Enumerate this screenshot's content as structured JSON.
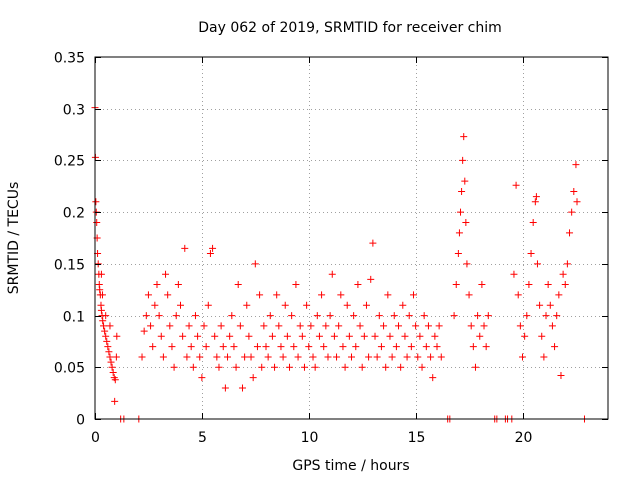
{
  "chart_data": {
    "type": "scatter",
    "title": "Day 062 of 2019, SRMTID for receiver chim",
    "xlabel": "GPS time / hours",
    "ylabel": "SRMTID / TECUs",
    "xlim": [
      0,
      24
    ],
    "ylim": [
      0,
      0.35
    ],
    "x_ticks": [
      0,
      5,
      10,
      15,
      20
    ],
    "x_tick_labels": [
      "0",
      "5",
      "10",
      "15",
      "20"
    ],
    "y_ticks": [
      0,
      0.05,
      0.1,
      0.15,
      0.2,
      0.25,
      0.3,
      0.35
    ],
    "y_tick_labels": [
      "0",
      "0.05",
      "0.1",
      "0.15",
      "0.2",
      "0.25",
      "0.3",
      "0.35"
    ],
    "grid": true,
    "marker": "+",
    "series": [
      {
        "name": "SRMTID",
        "color": "#ff0000",
        "points": [
          [
            0.0,
            0.301
          ],
          [
            0.02,
            0.253
          ],
          [
            0.04,
            0.21
          ],
          [
            0.06,
            0.2
          ],
          [
            0.08,
            0.19
          ],
          [
            0.1,
            0.175
          ],
          [
            0.12,
            0.16
          ],
          [
            0.15,
            0.15
          ],
          [
            0.18,
            0.14
          ],
          [
            0.2,
            0.13
          ],
          [
            0.22,
            0.125
          ],
          [
            0.25,
            0.12
          ],
          [
            0.28,
            0.11
          ],
          [
            0.3,
            0.105
          ],
          [
            0.33,
            0.1
          ],
          [
            0.36,
            0.095
          ],
          [
            0.4,
            0.09
          ],
          [
            0.45,
            0.085
          ],
          [
            0.5,
            0.08
          ],
          [
            0.55,
            0.075
          ],
          [
            0.6,
            0.07
          ],
          [
            0.65,
            0.065
          ],
          [
            0.7,
            0.06
          ],
          [
            0.75,
            0.055
          ],
          [
            0.8,
            0.05
          ],
          [
            0.85,
            0.045
          ],
          [
            0.9,
            0.04
          ],
          [
            0.95,
            0.038
          ],
          [
            1.0,
            0.06
          ],
          [
            1.02,
            0.08
          ],
          [
            0.92,
            0.017
          ],
          [
            0.3,
            0.14
          ],
          [
            0.35,
            0.12
          ],
          [
            0.5,
            0.1
          ],
          [
            0.7,
            0.09
          ],
          [
            1.2,
            0.0
          ],
          [
            1.35,
            0.0
          ],
          [
            2.05,
            0.0
          ],
          [
            2.2,
            0.06
          ],
          [
            2.3,
            0.085
          ],
          [
            2.4,
            0.1
          ],
          [
            2.5,
            0.12
          ],
          [
            2.6,
            0.09
          ],
          [
            2.7,
            0.07
          ],
          [
            2.8,
            0.11
          ],
          [
            2.9,
            0.13
          ],
          [
            3.0,
            0.1
          ],
          [
            3.1,
            0.08
          ],
          [
            3.2,
            0.06
          ],
          [
            3.3,
            0.14
          ],
          [
            3.4,
            0.12
          ],
          [
            3.5,
            0.09
          ],
          [
            3.6,
            0.07
          ],
          [
            3.7,
            0.05
          ],
          [
            3.8,
            0.1
          ],
          [
            3.9,
            0.13
          ],
          [
            4.0,
            0.11
          ],
          [
            4.1,
            0.08
          ],
          [
            4.2,
            0.165
          ],
          [
            4.3,
            0.06
          ],
          [
            4.4,
            0.09
          ],
          [
            4.5,
            0.07
          ],
          [
            4.6,
            0.05
          ],
          [
            4.7,
            0.1
          ],
          [
            4.8,
            0.08
          ],
          [
            4.9,
            0.06
          ],
          [
            5.0,
            0.04
          ],
          [
            5.1,
            0.09
          ],
          [
            5.2,
            0.07
          ],
          [
            5.3,
            0.11
          ],
          [
            5.4,
            0.16
          ],
          [
            5.5,
            0.165
          ],
          [
            5.6,
            0.08
          ],
          [
            5.7,
            0.06
          ],
          [
            5.8,
            0.05
          ],
          [
            5.9,
            0.09
          ],
          [
            6.0,
            0.07
          ],
          [
            6.1,
            0.03
          ],
          [
            6.2,
            0.06
          ],
          [
            6.3,
            0.08
          ],
          [
            6.4,
            0.1
          ],
          [
            6.5,
            0.07
          ],
          [
            6.6,
            0.05
          ],
          [
            6.7,
            0.13
          ],
          [
            6.8,
            0.09
          ],
          [
            6.9,
            0.03
          ],
          [
            7.0,
            0.06
          ],
          [
            7.1,
            0.11
          ],
          [
            7.2,
            0.08
          ],
          [
            7.3,
            0.06
          ],
          [
            7.4,
            0.04
          ],
          [
            7.5,
            0.15
          ],
          [
            7.6,
            0.07
          ],
          [
            7.7,
            0.12
          ],
          [
            7.8,
            0.05
          ],
          [
            7.9,
            0.09
          ],
          [
            8.0,
            0.07
          ],
          [
            8.1,
            0.06
          ],
          [
            8.2,
            0.1
          ],
          [
            8.3,
            0.08
          ],
          [
            8.4,
            0.05
          ],
          [
            8.5,
            0.12
          ],
          [
            8.6,
            0.09
          ],
          [
            8.7,
            0.07
          ],
          [
            8.8,
            0.06
          ],
          [
            8.9,
            0.11
          ],
          [
            9.0,
            0.08
          ],
          [
            9.1,
            0.05
          ],
          [
            9.2,
            0.1
          ],
          [
            9.3,
            0.07
          ],
          [
            9.4,
            0.13
          ],
          [
            9.5,
            0.06
          ],
          [
            9.6,
            0.09
          ],
          [
            9.7,
            0.08
          ],
          [
            9.8,
            0.05
          ],
          [
            9.9,
            0.11
          ],
          [
            10.0,
            0.07
          ],
          [
            10.1,
            0.09
          ],
          [
            10.2,
            0.06
          ],
          [
            10.3,
            0.05
          ],
          [
            10.4,
            0.1
          ],
          [
            10.5,
            0.08
          ],
          [
            10.6,
            0.12
          ],
          [
            10.7,
            0.07
          ],
          [
            10.8,
            0.09
          ],
          [
            10.9,
            0.06
          ],
          [
            11.0,
            0.1
          ],
          [
            11.1,
            0.14
          ],
          [
            11.2,
            0.08
          ],
          [
            11.3,
            0.06
          ],
          [
            11.4,
            0.09
          ],
          [
            11.5,
            0.12
          ],
          [
            11.6,
            0.07
          ],
          [
            11.7,
            0.05
          ],
          [
            11.8,
            0.11
          ],
          [
            11.9,
            0.08
          ],
          [
            12.0,
            0.06
          ],
          [
            12.1,
            0.1
          ],
          [
            12.2,
            0.07
          ],
          [
            12.3,
            0.13
          ],
          [
            12.4,
            0.09
          ],
          [
            12.5,
            0.05
          ],
          [
            12.6,
            0.08
          ],
          [
            12.7,
            0.11
          ],
          [
            12.8,
            0.06
          ],
          [
            12.9,
            0.135
          ],
          [
            13.0,
            0.17
          ],
          [
            13.1,
            0.08
          ],
          [
            13.2,
            0.06
          ],
          [
            13.3,
            0.1
          ],
          [
            13.4,
            0.07
          ],
          [
            13.5,
            0.09
          ],
          [
            13.6,
            0.05
          ],
          [
            13.7,
            0.12
          ],
          [
            13.8,
            0.08
          ],
          [
            13.9,
            0.06
          ],
          [
            14.0,
            0.1
          ],
          [
            14.1,
            0.07
          ],
          [
            14.2,
            0.09
          ],
          [
            14.3,
            0.05
          ],
          [
            14.4,
            0.11
          ],
          [
            14.5,
            0.08
          ],
          [
            14.6,
            0.06
          ],
          [
            14.7,
            0.1
          ],
          [
            14.8,
            0.07
          ],
          [
            14.9,
            0.12
          ],
          [
            15.0,
            0.09
          ],
          [
            15.1,
            0.06
          ],
          [
            15.2,
            0.08
          ],
          [
            15.3,
            0.05
          ],
          [
            15.4,
            0.1
          ],
          [
            15.5,
            0.07
          ],
          [
            15.6,
            0.09
          ],
          [
            15.7,
            0.06
          ],
          [
            15.8,
            0.04
          ],
          [
            15.9,
            0.08
          ],
          [
            16.0,
            0.07
          ],
          [
            16.1,
            0.09
          ],
          [
            16.2,
            0.06
          ],
          [
            16.5,
            0.0
          ],
          [
            16.6,
            0.0
          ],
          [
            16.8,
            0.1
          ],
          [
            16.9,
            0.13
          ],
          [
            17.0,
            0.16
          ],
          [
            17.05,
            0.18
          ],
          [
            17.1,
            0.2
          ],
          [
            17.15,
            0.22
          ],
          [
            17.2,
            0.25
          ],
          [
            17.25,
            0.273
          ],
          [
            17.3,
            0.23
          ],
          [
            17.35,
            0.19
          ],
          [
            17.4,
            0.15
          ],
          [
            17.5,
            0.12
          ],
          [
            17.6,
            0.09
          ],
          [
            17.7,
            0.07
          ],
          [
            17.8,
            0.05
          ],
          [
            17.9,
            0.1
          ],
          [
            18.0,
            0.08
          ],
          [
            18.1,
            0.13
          ],
          [
            18.2,
            0.09
          ],
          [
            18.3,
            0.07
          ],
          [
            18.4,
            0.1
          ],
          [
            18.7,
            0.0
          ],
          [
            18.8,
            0.0
          ],
          [
            19.2,
            0.0
          ],
          [
            19.3,
            0.0
          ],
          [
            19.5,
            0.0
          ],
          [
            19.6,
            0.14
          ],
          [
            19.7,
            0.226
          ],
          [
            19.8,
            0.12
          ],
          [
            19.9,
            0.09
          ],
          [
            20.0,
            0.06
          ],
          [
            20.1,
            0.08
          ],
          [
            20.2,
            0.1
          ],
          [
            20.3,
            0.13
          ],
          [
            20.4,
            0.16
          ],
          [
            20.5,
            0.19
          ],
          [
            20.6,
            0.21
          ],
          [
            20.65,
            0.215
          ],
          [
            20.7,
            0.15
          ],
          [
            20.8,
            0.11
          ],
          [
            20.9,
            0.08
          ],
          [
            21.0,
            0.06
          ],
          [
            21.1,
            0.1
          ],
          [
            21.2,
            0.13
          ],
          [
            21.3,
            0.11
          ],
          [
            21.4,
            0.09
          ],
          [
            21.5,
            0.07
          ],
          [
            21.6,
            0.1
          ],
          [
            21.7,
            0.12
          ],
          [
            21.8,
            0.042
          ],
          [
            21.9,
            0.14
          ],
          [
            22.0,
            0.13
          ],
          [
            22.1,
            0.15
          ],
          [
            22.2,
            0.18
          ],
          [
            22.3,
            0.2
          ],
          [
            22.4,
            0.22
          ],
          [
            22.5,
            0.246
          ],
          [
            22.55,
            0.21
          ],
          [
            22.9,
            0.0
          ]
        ]
      }
    ]
  }
}
